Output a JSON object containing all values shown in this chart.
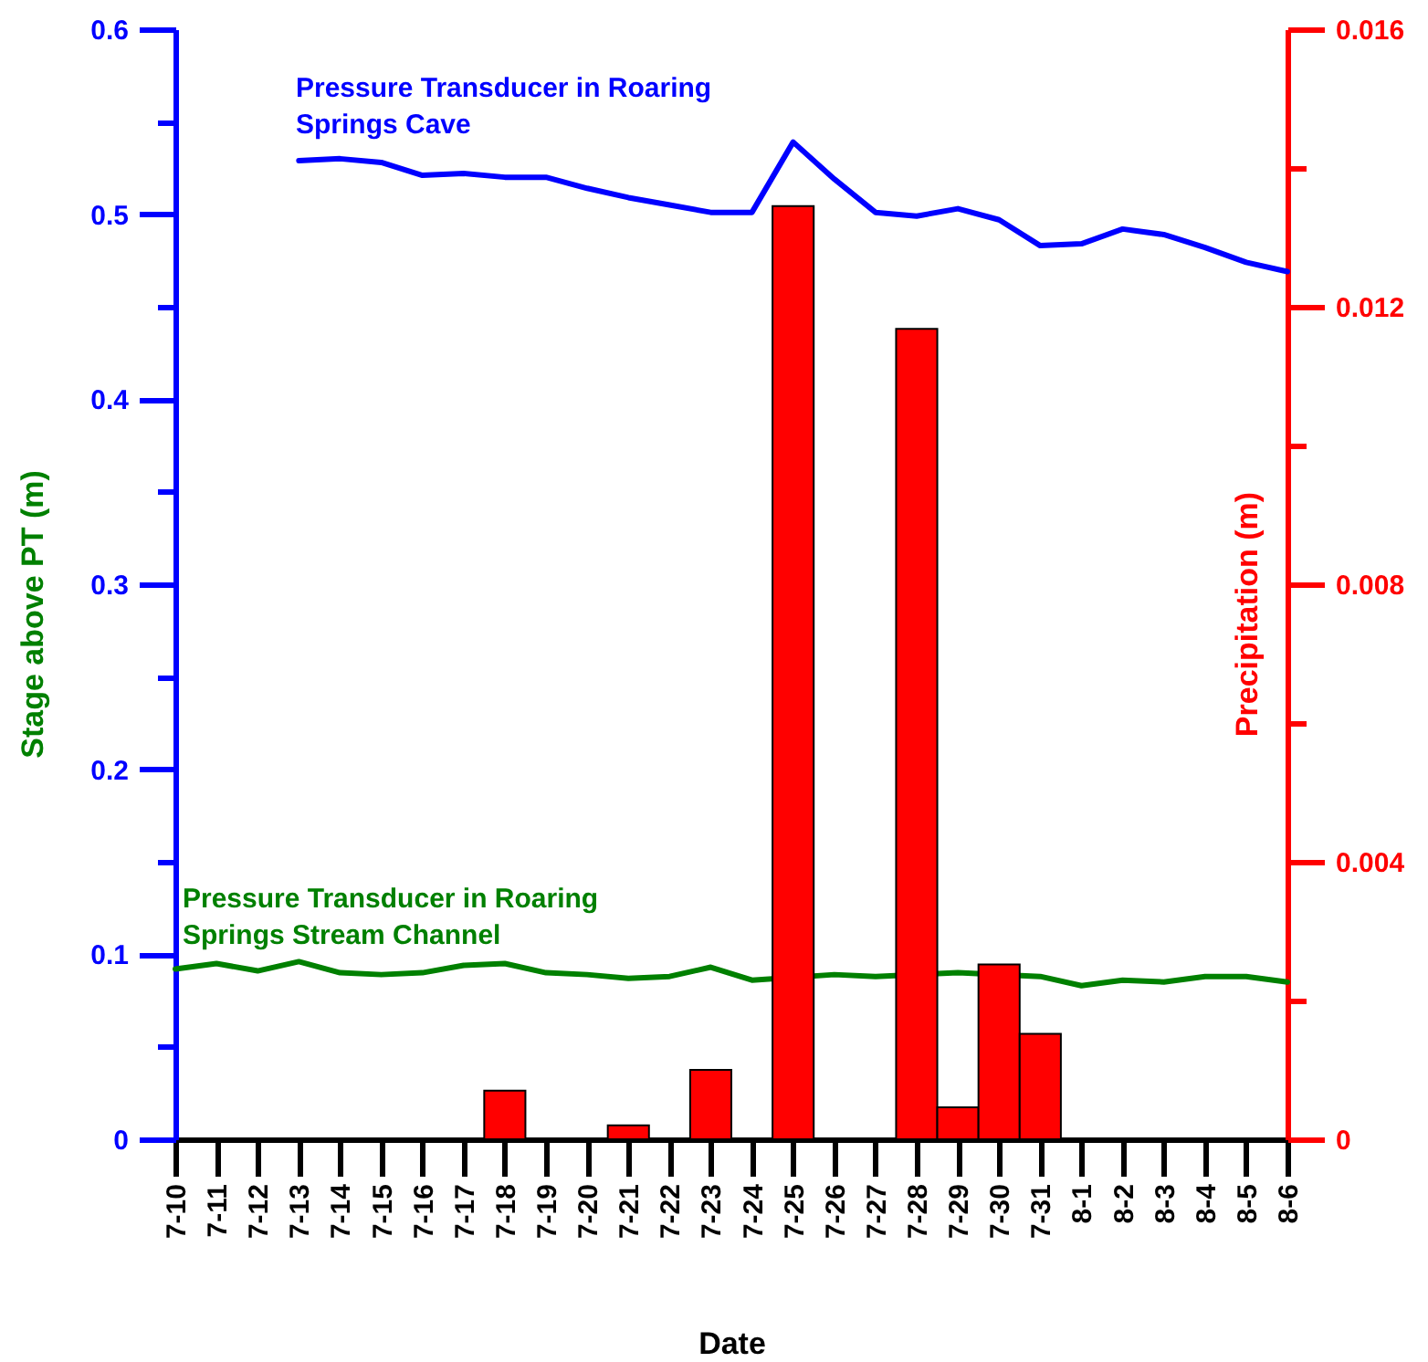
{
  "chart_data": {
    "type": "line",
    "xlabel": "Date",
    "ylabel": "Stage above PT (m)",
    "y2label": "Precipitation (m)",
    "categories": [
      "7-10",
      "7-11",
      "7-12",
      "7-13",
      "7-14",
      "7-15",
      "7-16",
      "7-17",
      "7-18",
      "7-19",
      "7-20",
      "7-21",
      "7-22",
      "7-23",
      "7-24",
      "7-25",
      "7-26",
      "7-27",
      "7-28",
      "7-29",
      "7-30",
      "7-31",
      "8-1",
      "8-2",
      "8-3",
      "8-4",
      "8-5",
      "8-6"
    ],
    "series": [
      {
        "name": "Pressure Transducer in Roaring Springs Cave",
        "color": "#0000ff",
        "values": [
          null,
          null,
          null,
          0.529,
          0.53,
          0.528,
          0.521,
          0.522,
          0.52,
          0.52,
          0.514,
          0.509,
          0.505,
          0.501,
          0.501,
          0.539,
          0.519,
          0.501,
          0.499,
          0.503,
          0.497,
          0.483,
          0.484,
          0.492,
          0.489,
          0.482,
          0.474,
          0.469
        ]
      },
      {
        "name": "Pressure Transducer in Roaring Springs Stream Channel",
        "color": "#008000",
        "values": [
          0.092,
          0.095,
          0.091,
          0.096,
          0.09,
          0.089,
          0.09,
          0.094,
          0.095,
          0.09,
          0.089,
          0.087,
          0.088,
          0.093,
          0.086,
          null,
          0.089,
          0.088,
          null,
          0.09,
          null,
          0.088,
          0.083,
          0.086,
          0.085,
          0.088,
          0.088,
          0.085
        ]
      },
      {
        "type": "bar",
        "axis": "y2",
        "color": "#ff0000",
        "values": [
          null,
          null,
          null,
          null,
          null,
          null,
          null,
          null,
          0.0007,
          null,
          null,
          0.0002,
          null,
          0.001,
          null,
          0.01345,
          null,
          null,
          0.01168,
          0.00046,
          0.00252,
          0.00152,
          null,
          null,
          null,
          null,
          null,
          null
        ]
      }
    ],
    "ylim": [
      0,
      0.6
    ],
    "yticks": [
      0,
      {
        "value": 0.05,
        "label": null
      },
      0.1,
      {
        "value": 0.15,
        "label": null
      },
      0.2,
      {
        "value": 0.25,
        "label": null
      },
      0.3,
      {
        "value": 0.35,
        "label": null
      },
      0.4,
      {
        "value": 0.45,
        "label": null
      },
      0.5,
      {
        "value": 0.55,
        "label": null
      },
      0.6
    ],
    "y2lim": [
      0,
      0.016
    ],
    "y2ticks": [
      0,
      {
        "value": 0.002,
        "label": null
      },
      0.004,
      {
        "value": 0.006,
        "label": null
      },
      0.008,
      {
        "value": 0.01,
        "label": null
      },
      0.012,
      {
        "value": 0.014,
        "label": null
      },
      0.016
    ],
    "grid": false,
    "marker": "none",
    "line_style": "solid"
  }
}
